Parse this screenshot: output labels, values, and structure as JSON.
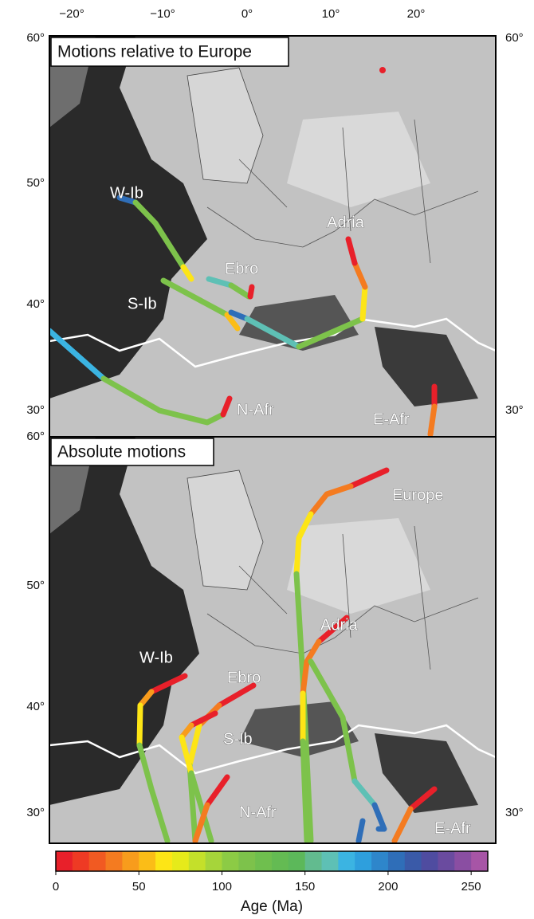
{
  "map": {
    "lon_labels": [
      "−20°",
      "−10°",
      "0°",
      "10°",
      "20°"
    ],
    "top_panel": {
      "title": "Motions relative to Europe",
      "lat_labels_left": [
        "60°",
        "50°",
        "40°",
        "30°"
      ],
      "lat_labels_right": [
        "60°",
        "30°"
      ],
      "regions": [
        "W-Ib",
        "Ebro",
        "S-Ib",
        "Adria",
        "N-Afr",
        "E-Afr"
      ]
    },
    "bottom_panel": {
      "title": "Absolute motions",
      "lat_labels_left": [
        "60°",
        "50°",
        "40°",
        "30°"
      ],
      "lat_labels_right": [
        "30°"
      ],
      "regions": [
        "Europe",
        "Adria",
        "W-Ib",
        "Ebro",
        "S-Ib",
        "N-Afr",
        "E-Afr"
      ]
    }
  },
  "chart_data": {
    "type": "colorbar",
    "label": "Age (Ma)",
    "xlim": [
      0,
      260
    ],
    "xticks": [
      0,
      50,
      100,
      150,
      200,
      250
    ],
    "colors": [
      "#e8202a",
      "#ee3a24",
      "#f15a22",
      "#f47b20",
      "#f89c1c",
      "#fbbd17",
      "#fde516",
      "#e6ea1a",
      "#c4e02a",
      "#a6d53a",
      "#8ccb45",
      "#7dc24b",
      "#6fbf4e",
      "#64bb53",
      "#5cb85a",
      "#62bb8f",
      "#5ec0b5",
      "#3bb4e2",
      "#2e9fdd",
      "#2e86cb",
      "#2f6eb8",
      "#3a5aa8",
      "#4f4ca0",
      "#6a4b9f",
      "#8a4ea2",
      "#a755a6"
    ]
  }
}
